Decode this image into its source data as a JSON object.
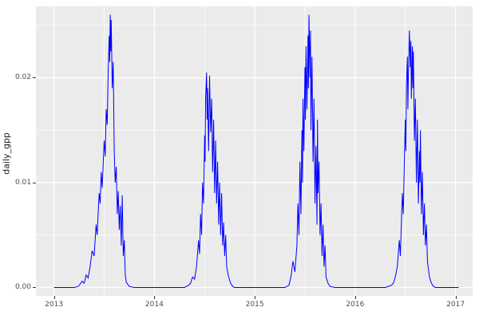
{
  "colors": {
    "panel_background": "#EBEBEB",
    "grid": "#FFFFFF",
    "line": "#0000FF",
    "axis_text": "#4d4d4d",
    "axis_title": "#1a1a1a"
  },
  "chart_data": {
    "type": "line",
    "title": "",
    "xlabel": "",
    "ylabel": "daily_gpp",
    "legend": "none",
    "grid": "on",
    "xlim": [
      2012.82,
      2017.17
    ],
    "ylim": [
      -0.0008,
      0.0268
    ],
    "x_ticks": [
      2013,
      2014,
      2015,
      2016,
      2017
    ],
    "x_tick_labels": [
      "2013",
      "2014",
      "2015",
      "2016",
      "2017"
    ],
    "y_ticks": [
      0.0,
      0.01,
      0.02
    ],
    "y_tick_labels": [
      "0.00",
      "0.01",
      "0.02"
    ],
    "x_minor_ticks": [
      2013.5,
      2014.5,
      2015.5,
      2016.5
    ],
    "y_minor_ticks": [
      0.005,
      0.015,
      0.025
    ],
    "series": [
      {
        "name": "daily_gpp",
        "points": [
          [
            2013.0,
            0
          ],
          [
            2013.1,
            0
          ],
          [
            2013.2,
            0
          ],
          [
            2013.24,
            0.0001
          ],
          [
            2013.26,
            0.0003
          ],
          [
            2013.28,
            0.0006
          ],
          [
            2013.3,
            0.0004
          ],
          [
            2013.32,
            0.0012
          ],
          [
            2013.34,
            0.0009
          ],
          [
            2013.36,
            0.002
          ],
          [
            2013.38,
            0.0035
          ],
          [
            2013.4,
            0.003
          ],
          [
            2013.42,
            0.006
          ],
          [
            2013.43,
            0.005
          ],
          [
            2013.45,
            0.009
          ],
          [
            2013.46,
            0.008
          ],
          [
            2013.47,
            0.011
          ],
          [
            2013.48,
            0.0095
          ],
          [
            2013.5,
            0.014
          ],
          [
            2013.51,
            0.0125
          ],
          [
            2013.52,
            0.017
          ],
          [
            2013.53,
            0.0155
          ],
          [
            2013.54,
            0.0205
          ],
          [
            2013.55,
            0.024
          ],
          [
            2013.555,
            0.0215
          ],
          [
            2013.56,
            0.026
          ],
          [
            2013.565,
            0.0225
          ],
          [
            2013.57,
            0.0255
          ],
          [
            2013.58,
            0.019
          ],
          [
            2013.59,
            0.0215
          ],
          [
            2013.6,
            0.013
          ],
          [
            2013.61,
            0.01
          ],
          [
            2013.62,
            0.0115
          ],
          [
            2013.63,
            0.007
          ],
          [
            2013.64,
            0.0092
          ],
          [
            2013.65,
            0.0055
          ],
          [
            2013.66,
            0.0078
          ],
          [
            2013.67,
            0.004
          ],
          [
            2013.68,
            0.0088
          ],
          [
            2013.69,
            0.003
          ],
          [
            2013.7,
            0.0045
          ],
          [
            2013.71,
            0.0012
          ],
          [
            2013.72,
            0.0005
          ],
          [
            2013.75,
            0.0001
          ],
          [
            2013.8,
            0
          ],
          [
            2013.9,
            0
          ],
          [
            2014.0,
            0
          ],
          [
            2014.1,
            0
          ],
          [
            2014.2,
            0
          ],
          [
            2014.3,
            0
          ],
          [
            2014.34,
            0.0002
          ],
          [
            2014.36,
            0.0004
          ],
          [
            2014.38,
            0.001
          ],
          [
            2014.4,
            0.0008
          ],
          [
            2014.42,
            0.002
          ],
          [
            2014.44,
            0.0045
          ],
          [
            2014.45,
            0.0032
          ],
          [
            2014.46,
            0.007
          ],
          [
            2014.47,
            0.005
          ],
          [
            2014.48,
            0.01
          ],
          [
            2014.49,
            0.008
          ],
          [
            2014.5,
            0.0145
          ],
          [
            2014.505,
            0.012
          ],
          [
            2014.51,
            0.018
          ],
          [
            2014.52,
            0.0205
          ],
          [
            2014.525,
            0.016
          ],
          [
            2014.53,
            0.019
          ],
          [
            2014.54,
            0.013
          ],
          [
            2014.55,
            0.0202
          ],
          [
            2014.56,
            0.0148
          ],
          [
            2014.57,
            0.018
          ],
          [
            2014.58,
            0.011
          ],
          [
            2014.59,
            0.016
          ],
          [
            2014.6,
            0.009
          ],
          [
            2014.61,
            0.014
          ],
          [
            2014.62,
            0.008
          ],
          [
            2014.63,
            0.012
          ],
          [
            2014.64,
            0.006
          ],
          [
            2014.65,
            0.01
          ],
          [
            2014.66,
            0.005
          ],
          [
            2014.67,
            0.009
          ],
          [
            2014.68,
            0.004
          ],
          [
            2014.69,
            0.0062
          ],
          [
            2014.7,
            0.003
          ],
          [
            2014.71,
            0.005
          ],
          [
            2014.72,
            0.002
          ],
          [
            2014.74,
            0.001
          ],
          [
            2014.76,
            0.0004
          ],
          [
            2014.78,
            0.0001
          ],
          [
            2014.8,
            0
          ],
          [
            2014.9,
            0
          ],
          [
            2015.0,
            0
          ],
          [
            2015.1,
            0
          ],
          [
            2015.2,
            0
          ],
          [
            2015.3,
            0
          ],
          [
            2015.34,
            0.0002
          ],
          [
            2015.36,
            0.001
          ],
          [
            2015.38,
            0.0025
          ],
          [
            2015.4,
            0.0015
          ],
          [
            2015.42,
            0.004
          ],
          [
            2015.43,
            0.008
          ],
          [
            2015.44,
            0.005
          ],
          [
            2015.45,
            0.012
          ],
          [
            2015.46,
            0.007
          ],
          [
            2015.47,
            0.015
          ],
          [
            2015.475,
            0.01
          ],
          [
            2015.48,
            0.018
          ],
          [
            2015.49,
            0.013
          ],
          [
            2015.5,
            0.021
          ],
          [
            2015.505,
            0.016
          ],
          [
            2015.51,
            0.023
          ],
          [
            2015.52,
            0.017
          ],
          [
            2015.53,
            0.024
          ],
          [
            2015.535,
            0.019
          ],
          [
            2015.54,
            0.026
          ],
          [
            2015.55,
            0.02
          ],
          [
            2015.555,
            0.0245
          ],
          [
            2015.56,
            0.015
          ],
          [
            2015.57,
            0.022
          ],
          [
            2015.58,
            0.012
          ],
          [
            2015.59,
            0.018
          ],
          [
            2015.6,
            0.008
          ],
          [
            2015.61,
            0.0135
          ],
          [
            2015.62,
            0.006
          ],
          [
            2015.625,
            0.016
          ],
          [
            2015.63,
            0.009
          ],
          [
            2015.64,
            0.012
          ],
          [
            2015.65,
            0.005
          ],
          [
            2015.66,
            0.008
          ],
          [
            2015.67,
            0.003
          ],
          [
            2015.68,
            0.006
          ],
          [
            2015.69,
            0.002
          ],
          [
            2015.7,
            0.004
          ],
          [
            2015.71,
            0.001
          ],
          [
            2015.73,
            0.0004
          ],
          [
            2015.75,
            0.0001
          ],
          [
            2015.8,
            0
          ],
          [
            2015.9,
            0
          ],
          [
            2016.0,
            0
          ],
          [
            2016.1,
            0
          ],
          [
            2016.2,
            0
          ],
          [
            2016.3,
            0
          ],
          [
            2016.36,
            0.0002
          ],
          [
            2016.38,
            0.0004
          ],
          [
            2016.4,
            0.001
          ],
          [
            2016.42,
            0.002
          ],
          [
            2016.44,
            0.0045
          ],
          [
            2016.45,
            0.003
          ],
          [
            2016.46,
            0.006
          ],
          [
            2016.47,
            0.009
          ],
          [
            2016.48,
            0.007
          ],
          [
            2016.49,
            0.012
          ],
          [
            2016.5,
            0.016
          ],
          [
            2016.505,
            0.013
          ],
          [
            2016.51,
            0.019
          ],
          [
            2016.52,
            0.022
          ],
          [
            2016.525,
            0.017
          ],
          [
            2016.53,
            0.02
          ],
          [
            2016.54,
            0.0245
          ],
          [
            2016.55,
            0.021
          ],
          [
            2016.555,
            0.0235
          ],
          [
            2016.56,
            0.018
          ],
          [
            2016.57,
            0.023
          ],
          [
            2016.575,
            0.019
          ],
          [
            2016.58,
            0.0225
          ],
          [
            2016.59,
            0.014
          ],
          [
            2016.6,
            0.018
          ],
          [
            2016.61,
            0.01
          ],
          [
            2016.62,
            0.016
          ],
          [
            2016.63,
            0.008
          ],
          [
            2016.64,
            0.013
          ],
          [
            2016.645,
            0.01
          ],
          [
            2016.65,
            0.015
          ],
          [
            2016.66,
            0.007
          ],
          [
            2016.67,
            0.011
          ],
          [
            2016.68,
            0.005
          ],
          [
            2016.69,
            0.008
          ],
          [
            2016.7,
            0.004
          ],
          [
            2016.71,
            0.006
          ],
          [
            2016.72,
            0.0025
          ],
          [
            2016.74,
            0.001
          ],
          [
            2016.76,
            0.0004
          ],
          [
            2016.78,
            0.0001
          ],
          [
            2016.8,
            0
          ],
          [
            2016.9,
            0
          ],
          [
            2017.0,
            0
          ],
          [
            2017.03,
            0
          ]
        ]
      }
    ]
  }
}
